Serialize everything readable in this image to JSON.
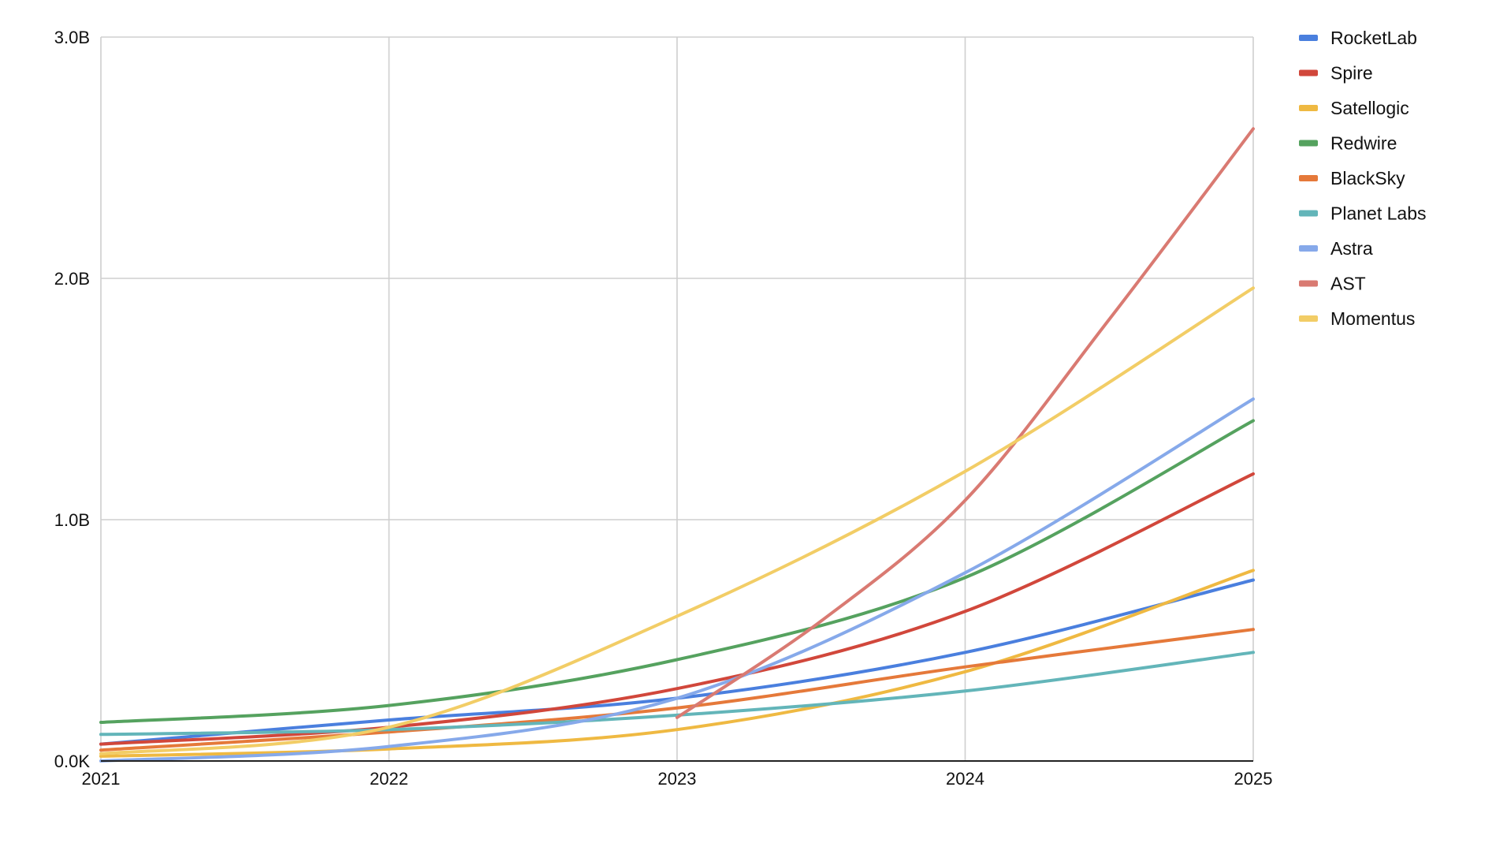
{
  "chart_data": {
    "type": "line",
    "title": "",
    "xlabel": "",
    "ylabel": "",
    "x": [
      2021,
      2022,
      2023,
      2024,
      2025
    ],
    "xlim": [
      2021,
      2025
    ],
    "ylim": [
      0,
      3000000000
    ],
    "x_tick_labels": [
      "2021",
      "2022",
      "2023",
      "2024",
      "2025"
    ],
    "y_ticks": [
      0,
      1000000000,
      2000000000,
      3000000000
    ],
    "y_tick_labels": [
      "0.0K",
      "1.0B",
      "2.0B",
      "3.0B"
    ],
    "grid": true,
    "legend_position": "right",
    "series": [
      {
        "name": "RocketLab",
        "color": "#4a7fde",
        "x": [
          2021,
          2022,
          2023,
          2024,
          2025
        ],
        "values": [
          70000000,
          170000000,
          260000000,
          450000000,
          750000000
        ]
      },
      {
        "name": "Spire",
        "color": "#d1473b",
        "x": [
          2021,
          2022,
          2023,
          2024,
          2025
        ],
        "values": [
          70000000,
          140000000,
          300000000,
          620000000,
          1190000000
        ]
      },
      {
        "name": "Satellogic",
        "color": "#efb942",
        "x": [
          2021,
          2022,
          2023,
          2024,
          2025
        ],
        "values": [
          20000000,
          50000000,
          130000000,
          370000000,
          790000000
        ]
      },
      {
        "name": "Redwire",
        "color": "#55a25f",
        "x": [
          2021,
          2022,
          2023,
          2024,
          2025
        ],
        "values": [
          160000000,
          230000000,
          420000000,
          760000000,
          1410000000
        ]
      },
      {
        "name": "BlackSky",
        "color": "#e5793a",
        "x": [
          2021,
          2022,
          2023,
          2024,
          2025
        ],
        "values": [
          45000000,
          120000000,
          220000000,
          390000000,
          545000000
        ]
      },
      {
        "name": "Planet Labs",
        "color": "#63b5b9",
        "x": [
          2021,
          2022,
          2023,
          2024,
          2025
        ],
        "values": [
          110000000,
          130000000,
          190000000,
          290000000,
          450000000
        ]
      },
      {
        "name": "Astra",
        "color": "#86a9ea",
        "x": [
          2021,
          2022,
          2023,
          2024,
          2025
        ],
        "values": [
          0,
          60000000,
          260000000,
          780000000,
          1500000000
        ]
      },
      {
        "name": "AST",
        "color": "#d97a72",
        "x": [
          2023,
          2023.5,
          2024,
          2024.5,
          2025
        ],
        "values": [
          180000000,
          580000000,
          1080000000,
          1830000000,
          2620000000
        ]
      },
      {
        "name": "Momentus",
        "color": "#f2cd66",
        "x": [
          2021,
          2022,
          2023,
          2024,
          2025
        ],
        "values": [
          30000000,
          140000000,
          600000000,
          1200000000,
          1960000000
        ]
      }
    ]
  }
}
